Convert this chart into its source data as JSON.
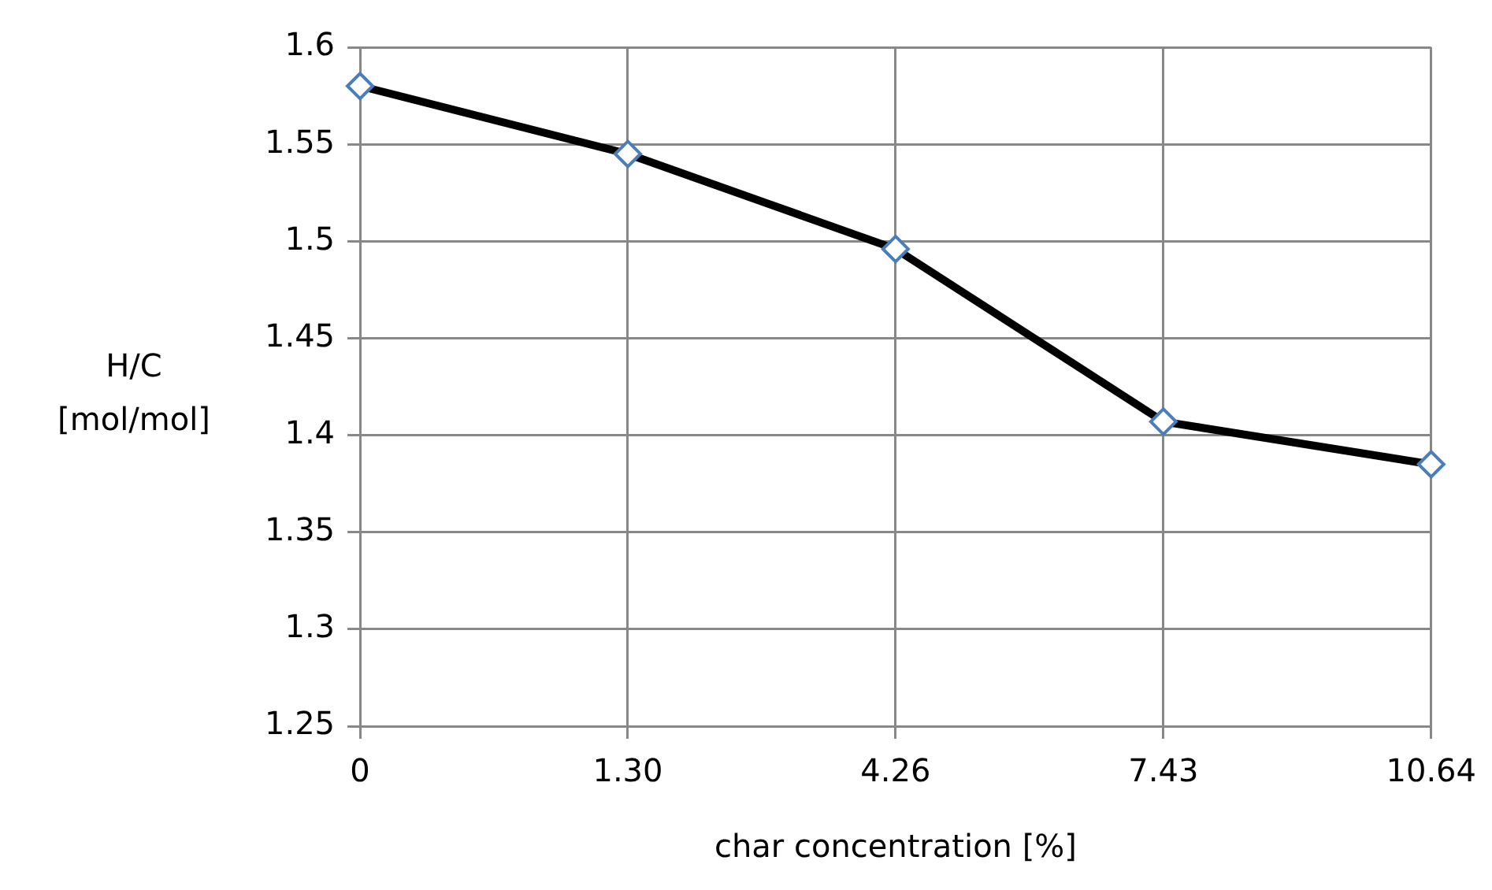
{
  "chart_data": {
    "type": "line",
    "xlabel": "char concentration [%]",
    "ylabel": "H/C\n[mol/mol]",
    "categories": [
      "0",
      "1.30",
      "4.26",
      "7.43",
      "10.64"
    ],
    "series": [
      {
        "color": "#000000",
        "values": [
          1.58,
          1.545,
          1.496,
          1.407,
          1.385
        ]
      }
    ],
    "ylim": [
      1.25,
      1.6
    ],
    "yticks": [
      1.25,
      1.3,
      1.35,
      1.4,
      1.45,
      1.5,
      1.55,
      1.6
    ],
    "grid": true,
    "legend": false,
    "marker": "diamond",
    "line_style": "solid"
  }
}
